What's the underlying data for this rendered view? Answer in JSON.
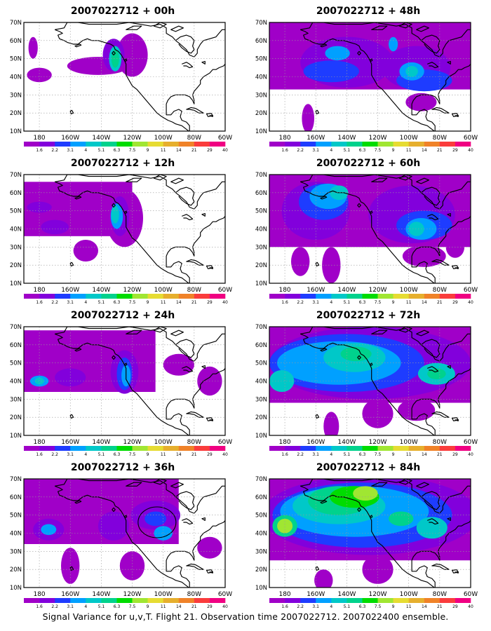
{
  "colorbar": {
    "labels": [
      "1.6",
      "2.2",
      "3.1",
      "4",
      "5.1",
      "6.3",
      "7.5",
      "9",
      "11",
      "14",
      "21",
      "29",
      "40"
    ],
    "colors": [
      "#a000c8",
      "#8200dc",
      "#1e3cff",
      "#00a0ff",
      "#00c8c8",
      "#00d28c",
      "#00dc00",
      "#a0e632",
      "#e6dc32",
      "#e6af2d",
      "#f08228",
      "#fa3c3c",
      "#f00082"
    ]
  },
  "axes": {
    "lat_labels": [
      "10N",
      "20N",
      "30N",
      "40N",
      "50N",
      "60N",
      "70N"
    ],
    "lon_labels": [
      "180",
      "160W",
      "140W",
      "120W",
      "100W",
      "80W",
      "60W"
    ]
  },
  "panels": [
    {
      "title": "2007022712 + 00h"
    },
    {
      "title": "2007022712 + 48h"
    },
    {
      "title": "2007022712 + 12h"
    },
    {
      "title": "2007022712 + 60h"
    },
    {
      "title": "2007022712 + 24h"
    },
    {
      "title": "2007022712 + 72h"
    },
    {
      "title": "2007022712 + 36h"
    },
    {
      "title": "2007022712 + 84h"
    }
  ],
  "caption": "Signal Variance for u,v,T. Flight 21. Observation time 2007022712. 2007022400 ensemble."
}
